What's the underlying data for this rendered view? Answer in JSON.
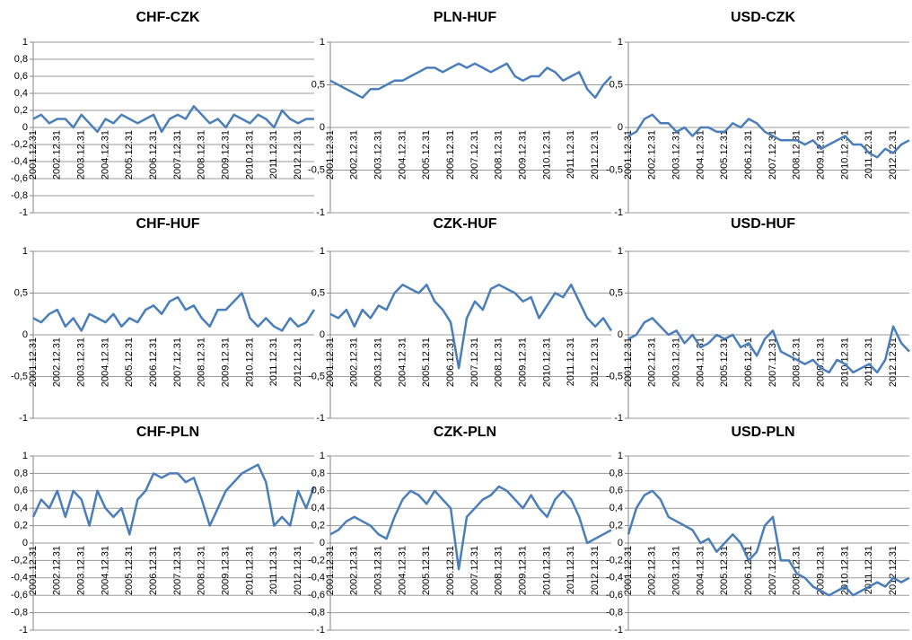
{
  "chart_data": [
    {
      "type": "line",
      "title": "CHF-CZK",
      "color": "#4a7ebb",
      "grid": true,
      "ylim": [
        -1,
        1
      ],
      "yticks": [
        -1,
        {
          "value": -0.8,
          "label": "-0,8"
        },
        {
          "value": -0.6,
          "label": "-0,6"
        },
        {
          "value": -0.4,
          "label": "-0,4"
        },
        {
          "value": -0.2,
          "label": "-0,2"
        },
        0,
        {
          "value": 0.2,
          "label": "0,2"
        },
        {
          "value": 0.4,
          "label": "0,4"
        },
        {
          "value": 0.6,
          "label": "0,6"
        },
        {
          "value": 0.8,
          "label": "0,8"
        },
        1
      ],
      "categories": [
        "2001.12.31",
        null,
        null,
        "2002.12.31",
        null,
        null,
        "2003.12.31",
        null,
        null,
        "2004.12.31",
        null,
        null,
        "2005.12.31",
        null,
        null,
        "2006.12.31",
        null,
        null,
        "2007.12.31",
        null,
        null,
        "2008.12.31",
        null,
        null,
        "2009.12.31",
        null,
        null,
        "2010.12.31",
        null,
        null,
        "2011.12.31",
        null,
        null,
        "2012.12.31",
        null,
        null
      ],
      "values": [
        0.1,
        0.15,
        0.05,
        0.1,
        0.1,
        0.0,
        0.15,
        0.05,
        -0.05,
        0.1,
        0.05,
        0.15,
        0.1,
        0.05,
        0.1,
        0.15,
        -0.05,
        0.1,
        0.15,
        0.1,
        0.25,
        0.15,
        0.05,
        0.1,
        0.0,
        0.15,
        0.1,
        0.05,
        0.15,
        0.1,
        0.0,
        0.2,
        0.1,
        0.05,
        0.1,
        0.1
      ]
    },
    {
      "type": "line",
      "title": "PLN-HUF",
      "color": "#4a7ebb",
      "grid": true,
      "ylim": [
        -1,
        1
      ],
      "yticks": [
        -1,
        {
          "value": -0.5,
          "label": "-0,5"
        },
        0,
        {
          "value": 0.5,
          "label": "0,5"
        },
        1
      ],
      "categories": [
        "2001.12.31",
        null,
        null,
        "2002.12.31",
        null,
        null,
        "2003.12.31",
        null,
        null,
        "2004.12.31",
        null,
        null,
        "2005.12.31",
        null,
        null,
        "2006.12.31",
        null,
        null,
        "2007.12.31",
        null,
        null,
        "2008.12.31",
        null,
        null,
        "2009.12.31",
        null,
        null,
        "2010.12.31",
        null,
        null,
        "2011.12.31",
        null,
        null,
        "2012.12.31",
        null,
        null
      ],
      "values": [
        0.55,
        0.5,
        0.45,
        0.4,
        0.35,
        0.45,
        0.45,
        0.5,
        0.55,
        0.55,
        0.6,
        0.65,
        0.7,
        0.7,
        0.65,
        0.7,
        0.75,
        0.7,
        0.75,
        0.7,
        0.65,
        0.7,
        0.75,
        0.6,
        0.55,
        0.6,
        0.6,
        0.7,
        0.65,
        0.55,
        0.6,
        0.65,
        0.45,
        0.35,
        0.5,
        0.6
      ]
    },
    {
      "type": "line",
      "title": "USD-CZK",
      "color": "#4a7ebb",
      "grid": true,
      "ylim": [
        -1,
        1
      ],
      "yticks": [
        -1,
        {
          "value": -0.5,
          "label": "-0,5"
        },
        0,
        {
          "value": 0.5,
          "label": "0,5"
        },
        1
      ],
      "categories": [
        "2001.12.31",
        null,
        null,
        "2002.12.31",
        null,
        null,
        "2003.12.31",
        null,
        null,
        "2004.12.31",
        null,
        null,
        "2005.12.31",
        null,
        null,
        "2006.12.31",
        null,
        null,
        "2007.12.31",
        null,
        null,
        "2008.12.31",
        null,
        null,
        "2009.12.31",
        null,
        null,
        "2010.12.31",
        null,
        null,
        "2011.12.31",
        null,
        null,
        "2012.12.31",
        null,
        null
      ],
      "values": [
        -0.1,
        -0.05,
        0.1,
        0.15,
        0.05,
        0.05,
        -0.05,
        0.0,
        -0.1,
        0.0,
        0.0,
        -0.05,
        -0.05,
        0.05,
        0.0,
        0.1,
        0.05,
        -0.05,
        -0.1,
        -0.15,
        -0.15,
        -0.15,
        -0.2,
        -0.15,
        -0.25,
        -0.2,
        -0.15,
        -0.1,
        -0.2,
        -0.2,
        -0.3,
        -0.35,
        -0.25,
        -0.3,
        -0.2,
        -0.15
      ]
    },
    {
      "type": "line",
      "title": "CHF-HUF",
      "color": "#4a7ebb",
      "grid": true,
      "ylim": [
        -1,
        1
      ],
      "yticks": [
        -1,
        {
          "value": -0.5,
          "label": "-0,5"
        },
        0,
        {
          "value": 0.5,
          "label": "0,5"
        },
        1
      ],
      "categories": [
        "2001.12.31",
        null,
        null,
        "2002.12.31",
        null,
        null,
        "2003.12.31",
        null,
        null,
        "2004.12.31",
        null,
        null,
        "2005.12.31",
        null,
        null,
        "2006.12.31",
        null,
        null,
        "2007.12.31",
        null,
        null,
        "2008.12.31",
        null,
        null,
        "2009.12.31",
        null,
        null,
        "2010.12.31",
        null,
        null,
        "2011.12.31",
        null,
        null,
        "2012.12.31",
        null,
        null
      ],
      "values": [
        0.2,
        0.15,
        0.25,
        0.3,
        0.1,
        0.2,
        0.05,
        0.25,
        0.2,
        0.15,
        0.25,
        0.1,
        0.2,
        0.15,
        0.3,
        0.35,
        0.25,
        0.4,
        0.45,
        0.3,
        0.35,
        0.2,
        0.1,
        0.3,
        0.3,
        0.4,
        0.5,
        0.2,
        0.1,
        0.2,
        0.1,
        0.05,
        0.2,
        0.1,
        0.15,
        0.3
      ]
    },
    {
      "type": "line",
      "title": "CZK-HUF",
      "color": "#4a7ebb",
      "grid": true,
      "ylim": [
        -1,
        1
      ],
      "yticks": [
        -1,
        {
          "value": -0.5,
          "label": "-0,5"
        },
        0,
        {
          "value": 0.5,
          "label": "0,5"
        },
        1
      ],
      "categories": [
        "2001.12.31",
        null,
        null,
        "2002.12.31",
        null,
        null,
        "2003.12.31",
        null,
        null,
        "2004.12.31",
        null,
        null,
        "2005.12.31",
        null,
        null,
        "2006.12.31",
        null,
        null,
        "2007.12.31",
        null,
        null,
        "2008.12.31",
        null,
        null,
        "2009.12.31",
        null,
        null,
        "2010.12.31",
        null,
        null,
        "2011.12.31",
        null,
        null,
        "2012.12.31",
        null,
        null
      ],
      "values": [
        0.25,
        0.2,
        0.3,
        0.1,
        0.3,
        0.2,
        0.35,
        0.3,
        0.5,
        0.6,
        0.55,
        0.5,
        0.6,
        0.4,
        0.3,
        0.15,
        -0.4,
        0.2,
        0.4,
        0.3,
        0.55,
        0.6,
        0.55,
        0.5,
        0.4,
        0.45,
        0.2,
        0.35,
        0.5,
        0.45,
        0.6,
        0.4,
        0.2,
        0.1,
        0.2,
        0.05
      ]
    },
    {
      "type": "line",
      "title": "USD-HUF",
      "color": "#4a7ebb",
      "grid": true,
      "ylim": [
        -1,
        1
      ],
      "yticks": [
        -1,
        {
          "value": -0.5,
          "label": "-0,5"
        },
        0,
        {
          "value": 0.5,
          "label": "0,5"
        },
        1
      ],
      "categories": [
        "2001.12.31",
        null,
        null,
        "2002.12.31",
        null,
        null,
        "2003.12.31",
        null,
        null,
        "2004.12.31",
        null,
        null,
        "2005.12.31",
        null,
        null,
        "2006.12.31",
        null,
        null,
        "2007.12.31",
        null,
        null,
        "2008.12.31",
        null,
        null,
        "2009.12.31",
        null,
        null,
        "2010.12.31",
        null,
        null,
        "2011.12.31",
        null,
        null,
        "2012.12.31",
        null,
        null
      ],
      "values": [
        -0.05,
        0.0,
        0.15,
        0.2,
        0.1,
        0.0,
        0.05,
        -0.1,
        0.0,
        -0.15,
        -0.1,
        0.0,
        -0.05,
        0.0,
        -0.15,
        -0.1,
        -0.25,
        -0.05,
        0.05,
        -0.2,
        -0.25,
        -0.3,
        -0.35,
        -0.3,
        -0.4,
        -0.45,
        -0.3,
        -0.35,
        -0.45,
        -0.4,
        -0.35,
        -0.45,
        -0.3,
        0.1,
        -0.1,
        -0.2
      ]
    },
    {
      "type": "line",
      "title": "CHF-PLN",
      "color": "#4a7ebb",
      "grid": true,
      "ylim": [
        -1,
        1
      ],
      "yticks": [
        -1,
        {
          "value": -0.8,
          "label": "-0,8"
        },
        {
          "value": -0.6,
          "label": "-0,6"
        },
        {
          "value": -0.4,
          "label": "-0,4"
        },
        {
          "value": -0.2,
          "label": "-0,2"
        },
        0,
        {
          "value": 0.2,
          "label": "0,2"
        },
        {
          "value": 0.4,
          "label": "0,4"
        },
        {
          "value": 0.6,
          "label": "0,6"
        },
        {
          "value": 0.8,
          "label": "0,8"
        },
        1
      ],
      "categories": [
        "2001.12.31",
        null,
        null,
        "2002.12.31",
        null,
        null,
        "2003.12.31",
        null,
        null,
        "2004.12.31",
        null,
        null,
        "2005.12.31",
        null,
        null,
        "2006.12.31",
        null,
        null,
        "2007.12.31",
        null,
        null,
        "2008.12.31",
        null,
        null,
        "2009.12.31",
        null,
        null,
        "2010.12.31",
        null,
        null,
        "2011.12.31",
        null,
        null,
        "2012.12.31",
        null,
        null
      ],
      "values": [
        0.3,
        0.5,
        0.4,
        0.6,
        0.3,
        0.6,
        0.5,
        0.2,
        0.6,
        0.4,
        0.3,
        0.4,
        0.1,
        0.5,
        0.6,
        0.8,
        0.75,
        0.8,
        0.8,
        0.7,
        0.75,
        0.5,
        0.2,
        0.4,
        0.6,
        0.7,
        0.8,
        0.85,
        0.9,
        0.7,
        0.2,
        0.3,
        0.2,
        0.6,
        0.4,
        0.65
      ]
    },
    {
      "type": "line",
      "title": "CZK-PLN",
      "color": "#4a7ebb",
      "grid": true,
      "ylim": [
        -1,
        1
      ],
      "yticks": [
        -1,
        {
          "value": -0.8,
          "label": "-0,8"
        },
        {
          "value": -0.6,
          "label": "-0,6"
        },
        {
          "value": -0.4,
          "label": "-0,4"
        },
        {
          "value": -0.2,
          "label": "-0,2"
        },
        0,
        {
          "value": 0.2,
          "label": "0,2"
        },
        {
          "value": 0.4,
          "label": "0,4"
        },
        {
          "value": 0.6,
          "label": "0,6"
        },
        {
          "value": 0.8,
          "label": "0,8"
        },
        1
      ],
      "categories": [
        "2001.12.31",
        null,
        null,
        "2002.12.31",
        null,
        null,
        "2003.12.31",
        null,
        null,
        "2004.12.31",
        null,
        null,
        "2005.12.31",
        null,
        null,
        "2006.12.31",
        null,
        null,
        "2007.12.31",
        null,
        null,
        "2008.12.31",
        null,
        null,
        "2009.12.31",
        null,
        null,
        "2010.12.31",
        null,
        null,
        "2011.12.31",
        null,
        null,
        "2012.12.31",
        null,
        null
      ],
      "values": [
        0.1,
        0.15,
        0.25,
        0.3,
        0.25,
        0.2,
        0.1,
        0.05,
        0.3,
        0.5,
        0.6,
        0.55,
        0.45,
        0.6,
        0.5,
        0.4,
        -0.3,
        0.3,
        0.4,
        0.5,
        0.55,
        0.65,
        0.6,
        0.5,
        0.4,
        0.55,
        0.4,
        0.3,
        0.5,
        0.6,
        0.5,
        0.3,
        0.0,
        0.05,
        0.1,
        0.15
      ]
    },
    {
      "type": "line",
      "title": "USD-PLN",
      "color": "#4a7ebb",
      "grid": true,
      "ylim": [
        -1,
        1
      ],
      "yticks": [
        -1,
        {
          "value": -0.8,
          "label": "-0,8"
        },
        {
          "value": -0.6,
          "label": "-0,6"
        },
        {
          "value": -0.4,
          "label": "-0,4"
        },
        {
          "value": -0.2,
          "label": "-0,2"
        },
        0,
        {
          "value": 0.2,
          "label": "0,2"
        },
        {
          "value": 0.4,
          "label": "0,4"
        },
        {
          "value": 0.6,
          "label": "0,6"
        },
        {
          "value": 0.8,
          "label": "0,8"
        },
        1
      ],
      "categories": [
        "2001.12.31",
        null,
        null,
        "2002.12.31",
        null,
        null,
        "2003.12.31",
        null,
        null,
        "2004.12.31",
        null,
        null,
        "2005.12.31",
        null,
        null,
        "2006.12.31",
        null,
        null,
        "2007.12.31",
        null,
        null,
        "2008.12.31",
        null,
        null,
        "2009.12.31",
        null,
        null,
        "2010.12.31",
        null,
        null,
        "2011.12.31",
        null,
        null,
        "2012.12.31",
        null,
        null
      ],
      "values": [
        0.1,
        0.4,
        0.55,
        0.6,
        0.5,
        0.3,
        0.25,
        0.2,
        0.15,
        0.0,
        0.05,
        -0.1,
        0.0,
        0.1,
        0.0,
        -0.2,
        -0.1,
        0.2,
        0.3,
        -0.2,
        -0.2,
        -0.35,
        -0.4,
        -0.5,
        -0.55,
        -0.6,
        -0.55,
        -0.5,
        -0.6,
        -0.55,
        -0.5,
        -0.45,
        -0.5,
        -0.4,
        -0.45,
        -0.4
      ]
    }
  ]
}
